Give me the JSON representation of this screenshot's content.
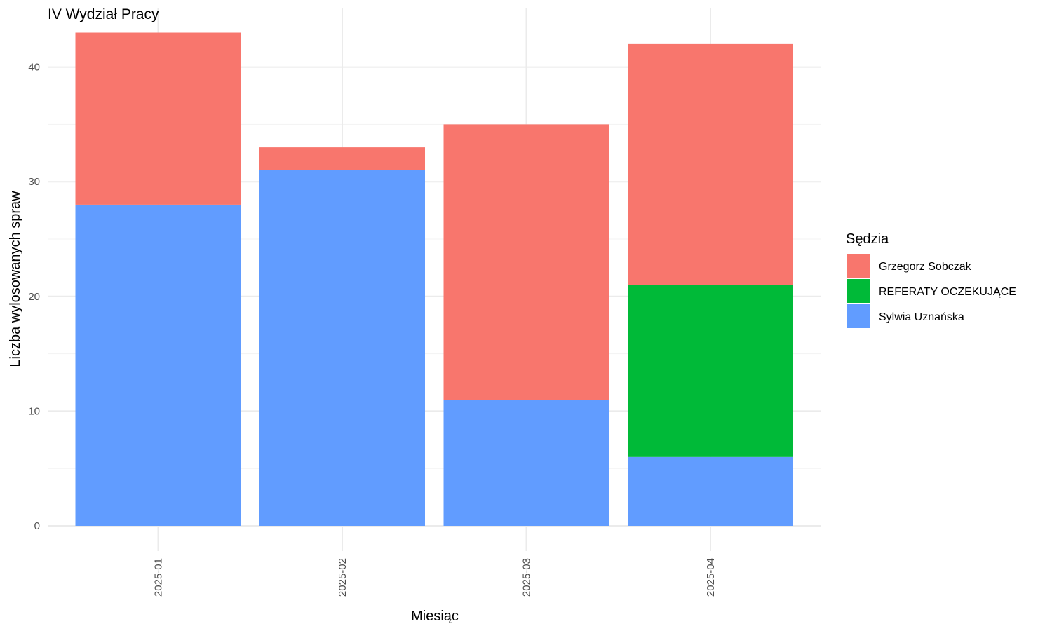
{
  "chart_data": {
    "type": "bar",
    "stacked": true,
    "title": "IV Wydział Pracy",
    "xlabel": "Miesiąc",
    "ylabel": "Liczba wylosowanych spraw",
    "categories": [
      "2025-01",
      "2025-02",
      "2025-03",
      "2025-04"
    ],
    "series": [
      {
        "name": "Sylwia Uznańska",
        "color": "#619cff",
        "values": [
          28,
          31,
          11,
          6
        ]
      },
      {
        "name": "REFERATY OCZEKUJĄCE",
        "color": "#00ba38",
        "values": [
          0,
          0,
          0,
          15
        ]
      },
      {
        "name": "Grzegorz Sobczak",
        "color": "#f8766d",
        "values": [
          15,
          2,
          24,
          21
        ]
      }
    ],
    "legend_order": [
      "Grzegorz Sobczak",
      "REFERATY OCZEKUJĄCE",
      "Sylwia Uznańska"
    ],
    "legend_title": "Sędzia",
    "legend_position": "right",
    "ylim": [
      0,
      43
    ],
    "yticks": [
      0,
      10,
      20,
      30,
      40
    ],
    "grid": true
  }
}
